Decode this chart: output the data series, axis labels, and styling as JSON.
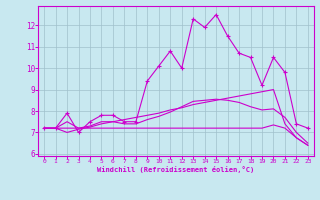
{
  "xlabel": "Windchill (Refroidissement éolien,°C)",
  "bg_color": "#c8e8f0",
  "line_color": "#cc00cc",
  "grid_color": "#a0c0cc",
  "spine_color": "#cc00cc",
  "xlim": [
    -0.5,
    23.5
  ],
  "ylim": [
    5.9,
    12.9
  ],
  "yticks": [
    6,
    7,
    8,
    9,
    10,
    11,
    12
  ],
  "xticks": [
    0,
    1,
    2,
    3,
    4,
    5,
    6,
    7,
    8,
    9,
    10,
    11,
    12,
    13,
    14,
    15,
    16,
    17,
    18,
    19,
    20,
    21,
    22,
    23
  ],
  "line1_x": [
    0,
    1,
    2,
    3,
    4,
    5,
    6,
    7,
    8,
    9,
    10,
    11,
    12,
    13,
    14,
    15,
    16,
    17,
    18,
    19,
    20,
    21,
    22,
    23
  ],
  "line1_y": [
    7.2,
    7.2,
    7.9,
    7.0,
    7.5,
    7.8,
    7.8,
    7.5,
    7.5,
    9.4,
    10.1,
    10.8,
    10.0,
    12.3,
    11.9,
    12.5,
    11.5,
    10.7,
    10.5,
    9.2,
    10.5,
    9.8,
    7.4,
    7.2
  ],
  "line2_x": [
    0,
    1,
    2,
    3,
    4,
    5,
    6,
    7,
    8,
    9,
    10,
    11,
    12,
    13,
    14,
    15,
    16,
    17,
    18,
    19,
    20,
    21,
    22,
    23
  ],
  "line2_y": [
    7.2,
    7.2,
    7.0,
    7.15,
    7.25,
    7.4,
    7.5,
    7.6,
    7.7,
    7.8,
    7.9,
    8.05,
    8.15,
    8.3,
    8.4,
    8.5,
    8.6,
    8.7,
    8.8,
    8.9,
    9.0,
    7.4,
    6.75,
    6.4
  ],
  "line3_x": [
    0,
    1,
    2,
    3,
    4,
    5,
    6,
    7,
    8,
    9,
    10,
    11,
    12,
    13,
    14,
    15,
    16,
    17,
    18,
    19,
    20,
    21,
    22,
    23
  ],
  "line3_y": [
    7.2,
    7.2,
    7.2,
    7.2,
    7.2,
    7.2,
    7.2,
    7.2,
    7.2,
    7.2,
    7.2,
    7.2,
    7.2,
    7.2,
    7.2,
    7.2,
    7.2,
    7.2,
    7.2,
    7.2,
    7.35,
    7.2,
    6.75,
    6.4
  ],
  "line4_x": [
    0,
    1,
    2,
    3,
    4,
    5,
    6,
    7,
    8,
    9,
    10,
    11,
    12,
    13,
    14,
    15,
    16,
    17,
    18,
    19,
    20,
    21,
    22,
    23
  ],
  "line4_y": [
    7.2,
    7.2,
    7.5,
    7.2,
    7.3,
    7.5,
    7.5,
    7.4,
    7.4,
    7.6,
    7.75,
    7.95,
    8.2,
    8.45,
    8.5,
    8.55,
    8.5,
    8.4,
    8.2,
    8.05,
    8.1,
    7.7,
    7.0,
    6.5
  ]
}
